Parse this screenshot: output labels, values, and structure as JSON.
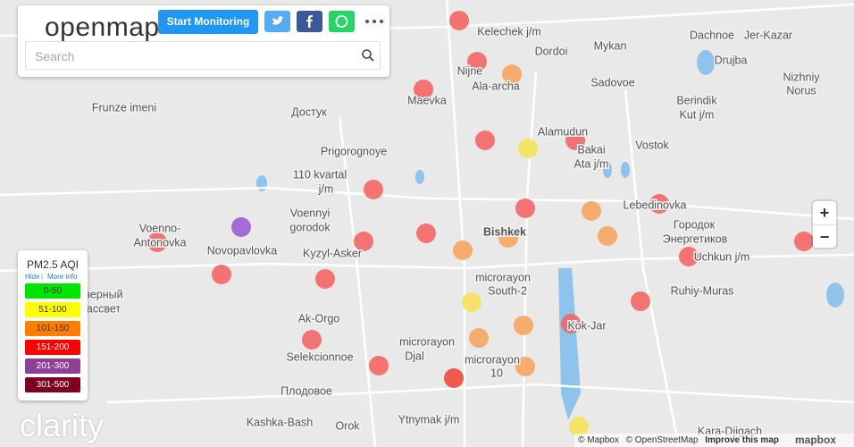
{
  "header": {
    "logo": "openmap",
    "button": "Start Monitoring",
    "search_placeholder": "Search"
  },
  "legend": {
    "title": "PM2.5 AQI",
    "links": [
      "Hide",
      "More info"
    ],
    "items": [
      {
        "label": "0-50",
        "color": "#00e400"
      },
      {
        "label": "51-100",
        "color": "#ffff00"
      },
      {
        "label": "101-150",
        "color": "#ff7e00"
      },
      {
        "label": "151-200",
        "color": "#ff0000"
      },
      {
        "label": "201-300",
        "color": "#8f3f97"
      },
      {
        "label": "301-500",
        "color": "#7e0023"
      }
    ]
  },
  "map": {
    "labels": [
      "Kelechek j/m",
      "Mykan",
      "Dachnoe",
      "Jer-Kazar",
      "Nijne",
      "Ala-archa",
      "Dordoi",
      "Drujba",
      "Nizhniy",
      "Norus",
      "Sadovoe",
      "Maevka",
      "Berindik",
      "Kut j/m",
      "Frunze imeni",
      "Достук",
      "Alamudun",
      "Bakai",
      "Ata j/m",
      "Vostok",
      "Prigorognoye",
      "110 kvartal",
      "j/m",
      "Lebedinovka",
      "Voennyi",
      "gorodok",
      "Voenno-",
      "Antonovka",
      "Bishkek",
      "Городок",
      "Энергетиков",
      "Novopavlovka",
      "Kyzyl-Asker",
      "Uchkun j/m",
      "microrayon",
      "South-2",
      "Ruhiy-Muras",
      "Ak-Orgo",
      "Kok-Jar",
      "microrayon",
      "Djal",
      "Selekcionnoe",
      "microrayon",
      "10",
      "Плодовое",
      "Kashka-Bash",
      "Orok",
      "Ytnymak j/m",
      "Kara-Djigach",
      "верный",
      "ассвет"
    ],
    "zoom": [
      "+",
      "−"
    ]
  },
  "attribution": {
    "items": [
      "© Mapbox",
      "© OpenStreetMap",
      "Improve this map"
    ],
    "logo": "mapbox"
  },
  "footer_logo": "clarity"
}
